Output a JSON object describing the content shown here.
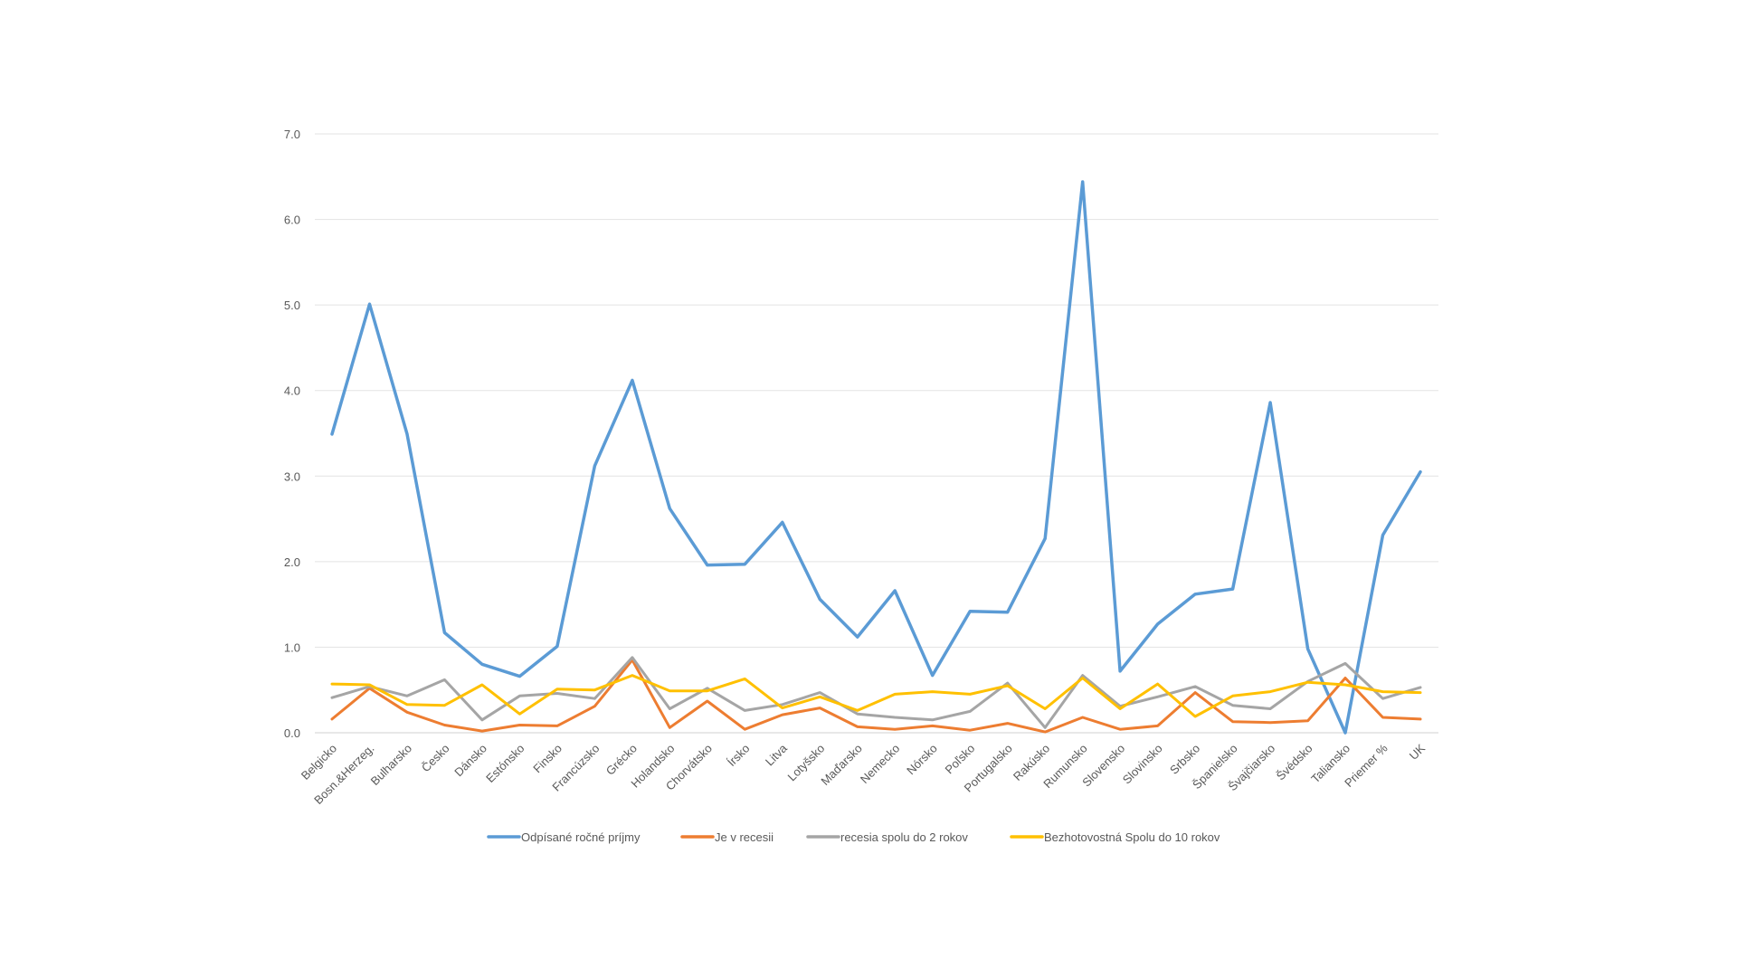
{
  "chart_data": {
    "type": "line",
    "title": "",
    "xlabel": "",
    "ylabel": "",
    "ylim": [
      0,
      7
    ],
    "yticks": [
      "0.0",
      "1.0",
      "2.0",
      "3.0",
      "4.0",
      "5.0",
      "6.0",
      "7.0"
    ],
    "grid": "horizontal",
    "legend_position": "bottom",
    "categories": [
      "Belgicko",
      "Bosn.&Herzeg.",
      "Bulharsko",
      "Česko",
      "Dánsko",
      "Estónsko",
      "Finsko",
      "Francúzsko",
      "Grécko",
      "Holandsko",
      "Chorvátsko",
      "Írsko",
      "Litva",
      "Lotyšsko",
      "Maďarsko",
      "Nemecko",
      "Nórsko",
      "Poľsko",
      "Portugalsko",
      "Rakúsko",
      "Rumunsko",
      "Slovensko",
      "Slovinsko",
      "Srbsko",
      "Španielsko",
      "Švajčiarsko",
      "Švédsko",
      "Taliansko",
      "Priemer %",
      "UK"
    ],
    "series": [
      {
        "name": "Odpísané ročné príjmy",
        "color": "#5b9bd5",
        "values": [
          3.49,
          5.01,
          3.49,
          1.17,
          0.8,
          0.66,
          1.01,
          3.12,
          4.12,
          2.62,
          1.96,
          1.97,
          2.46,
          1.56,
          1.12,
          1.66,
          0.67,
          1.42,
          1.41,
          2.27,
          6.44,
          0.72,
          1.27,
          1.62,
          1.68,
          3.86,
          0.98,
          0.0,
          2.31,
          3.05
        ]
      },
      {
        "name": "Je v recesii",
        "color": "#ed7d31",
        "values": [
          0.16,
          0.52,
          0.24,
          0.09,
          0.02,
          0.09,
          0.08,
          0.31,
          0.85,
          0.06,
          0.37,
          0.04,
          0.21,
          0.29,
          0.07,
          0.04,
          0.08,
          0.03,
          0.11,
          0.01,
          0.18,
          0.04,
          0.08,
          0.47,
          0.13,
          0.12,
          0.14,
          0.64,
          0.18,
          0.16
        ]
      },
      {
        "name": "recesia spolu do 2 rokov",
        "color": "#a5a5a5",
        "values": [
          0.41,
          0.54,
          0.43,
          0.62,
          0.15,
          0.43,
          0.46,
          0.4,
          0.88,
          0.28,
          0.52,
          0.26,
          0.33,
          0.47,
          0.22,
          0.18,
          0.15,
          0.25,
          0.58,
          0.06,
          0.67,
          0.31,
          0.42,
          0.54,
          0.32,
          0.28,
          0.6,
          0.81,
          0.4,
          0.53
        ]
      },
      {
        "name": "Bezhotovostná  Spolu do 10 rokov",
        "color": "#ffc000",
        "values": [
          0.57,
          0.56,
          0.33,
          0.32,
          0.56,
          0.22,
          0.51,
          0.5,
          0.67,
          0.49,
          0.49,
          0.63,
          0.29,
          0.42,
          0.26,
          0.45,
          0.48,
          0.45,
          0.55,
          0.28,
          0.64,
          0.28,
          0.57,
          0.19,
          0.43,
          0.48,
          0.59,
          0.56,
          0.48,
          0.47
        ]
      }
    ]
  }
}
